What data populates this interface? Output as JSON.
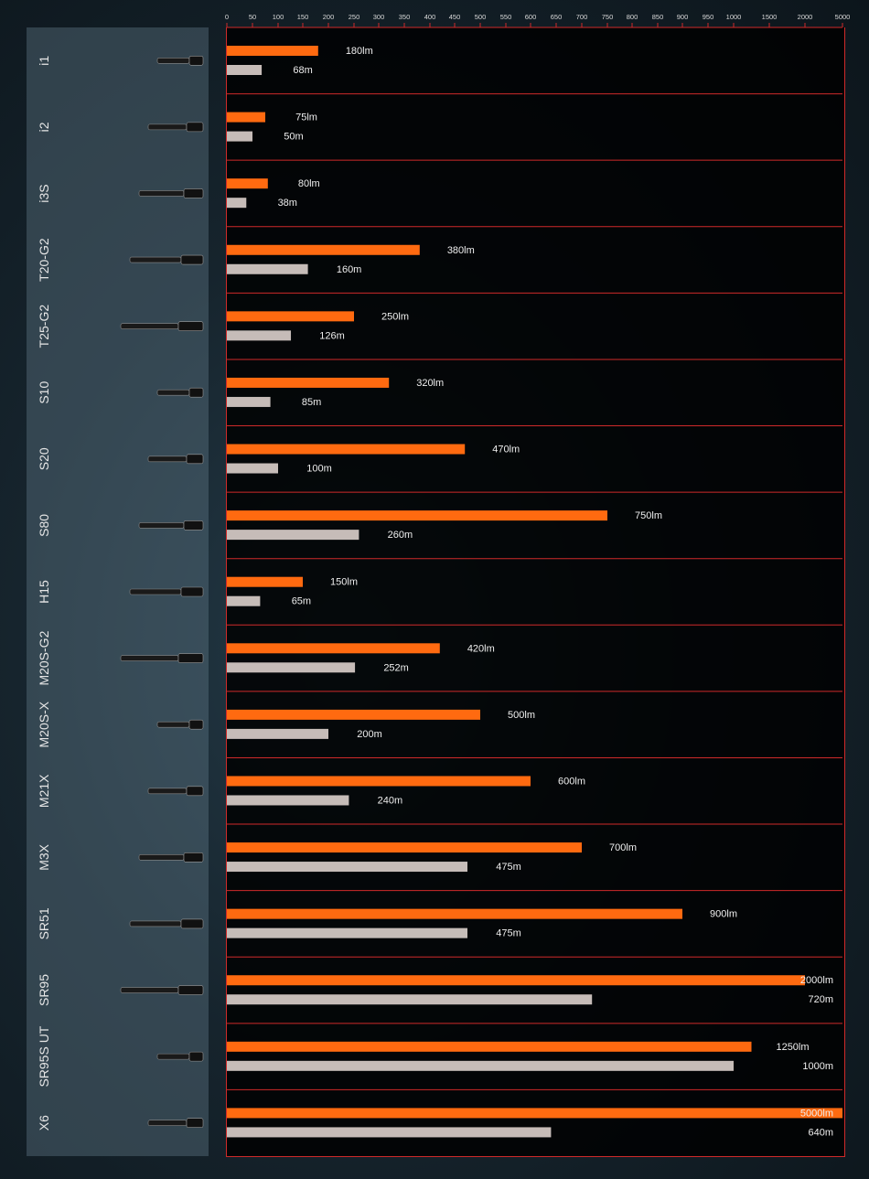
{
  "chart_data": {
    "type": "bar",
    "orientation": "horizontal",
    "axis_ticks": [
      "0",
      "50",
      "100",
      "150",
      "200",
      "250",
      "300",
      "350",
      "400",
      "450",
      "500",
      "550",
      "600",
      "650",
      "700",
      "750",
      "800",
      "850",
      "900",
      "950",
      "1000",
      "1500",
      "2000",
      "5000"
    ],
    "axis_ticks_values": [
      0,
      50,
      100,
      150,
      200,
      250,
      300,
      350,
      400,
      450,
      500,
      550,
      600,
      650,
      700,
      750,
      800,
      850,
      900,
      950,
      1000,
      1500,
      2000,
      5000
    ],
    "categories": [
      "i1",
      "i2",
      "i3S",
      "T20-G2",
      "T25-G2",
      "S10",
      "S20",
      "S80",
      "H15",
      "M20S-G2",
      "M20S-X",
      "M21X",
      "M3X",
      "SR51",
      "SR95",
      "SR95S UT",
      "X6"
    ],
    "series": [
      {
        "unit": "lm",
        "color": "#ff6a10",
        "values": [
          180,
          75,
          80,
          380,
          250,
          320,
          470,
          750,
          150,
          420,
          500,
          600,
          700,
          900,
          2000,
          1250,
          5000
        ]
      },
      {
        "unit": "m",
        "color": "#c6bcb8",
        "values": [
          68,
          50,
          38,
          160,
          126,
          85,
          100,
          260,
          65,
          252,
          200,
          240,
          475,
          475,
          720,
          1000,
          640
        ]
      }
    ],
    "labels": {
      "lumens": [
        "180lm",
        "75lm",
        "80lm",
        "380lm",
        "250lm",
        "320lm",
        "470lm",
        "750lm",
        "150lm",
        "420lm",
        "500lm",
        "600lm",
        "700lm",
        "900lm",
        "2000lm",
        "1250lm",
        "5000lm"
      ],
      "throw": [
        "68m",
        "50m",
        "38m",
        "160m",
        "126m",
        "85m",
        "100m",
        "260m",
        "65m",
        "252m",
        "200m",
        "240m",
        "475m",
        "475m",
        "720m",
        "1000m",
        "640m"
      ]
    },
    "grid_line_color": "#cf2a2a",
    "grid": true,
    "legend": "none"
  }
}
